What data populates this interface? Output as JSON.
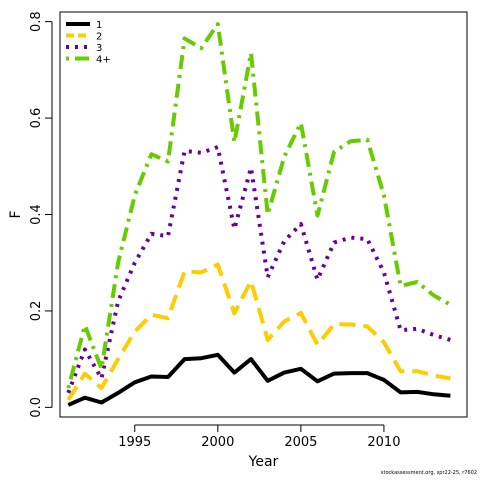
{
  "chart_data": {
    "type": "line",
    "title": "",
    "xlabel": "Year",
    "ylabel": "F",
    "xlim": [
      1990.5,
      2015
    ],
    "ylim": [
      -0.02,
      0.82
    ],
    "xticks": [
      1995,
      2000,
      2005,
      2010
    ],
    "yticks": [
      0.0,
      0.2,
      0.4,
      0.6,
      0.8
    ],
    "ytick_labels": [
      "0.0",
      "0.2",
      "0.4",
      "0.6",
      "0.8"
    ],
    "legend_position": "top-left",
    "grid": false,
    "x": [
      1991,
      1992,
      1993,
      1994,
      1995,
      1996,
      1997,
      1998,
      1999,
      2000,
      2001,
      2002,
      2003,
      2004,
      2005,
      2006,
      2007,
      2008,
      2009,
      2010,
      2011,
      2012,
      2013,
      2014
    ],
    "series": [
      {
        "name": "1",
        "color": "#000000",
        "dash": "solid",
        "values": [
          0.005,
          0.02,
          0.01,
          0.03,
          0.052,
          0.064,
          0.063,
          0.1,
          0.102,
          0.109,
          0.072,
          0.1,
          0.055,
          0.072,
          0.08,
          0.054,
          0.07,
          0.071,
          0.071,
          0.057,
          0.031,
          0.032,
          0.027,
          0.024
        ]
      },
      {
        "name": "2",
        "color": "#FFCC00",
        "dash": "dashed",
        "values": [
          0.015,
          0.07,
          0.04,
          0.1,
          0.157,
          0.192,
          0.185,
          0.282,
          0.28,
          0.296,
          0.195,
          0.262,
          0.14,
          0.178,
          0.196,
          0.13,
          0.172,
          0.172,
          0.168,
          0.135,
          0.075,
          0.075,
          0.066,
          0.06
        ]
      },
      {
        "name": "3",
        "color": "#660099",
        "dash": "dotted",
        "values": [
          0.03,
          0.12,
          0.06,
          0.22,
          0.3,
          0.36,
          0.355,
          0.532,
          0.528,
          0.54,
          0.37,
          0.497,
          0.27,
          0.345,
          0.38,
          0.265,
          0.342,
          0.352,
          0.349,
          0.28,
          0.16,
          0.163,
          0.15,
          0.14
        ]
      },
      {
        "name": "4+",
        "color": "#66CC00",
        "dash": "dotdash",
        "values": [
          0.04,
          0.17,
          0.08,
          0.3,
          0.44,
          0.525,
          0.51,
          0.765,
          0.745,
          0.795,
          0.55,
          0.735,
          0.4,
          0.52,
          0.59,
          0.398,
          0.53,
          0.552,
          0.555,
          0.44,
          0.252,
          0.26,
          0.232,
          0.213
        ]
      }
    ]
  },
  "footer_note": "stockassessment.org, spr22-25, r7602"
}
